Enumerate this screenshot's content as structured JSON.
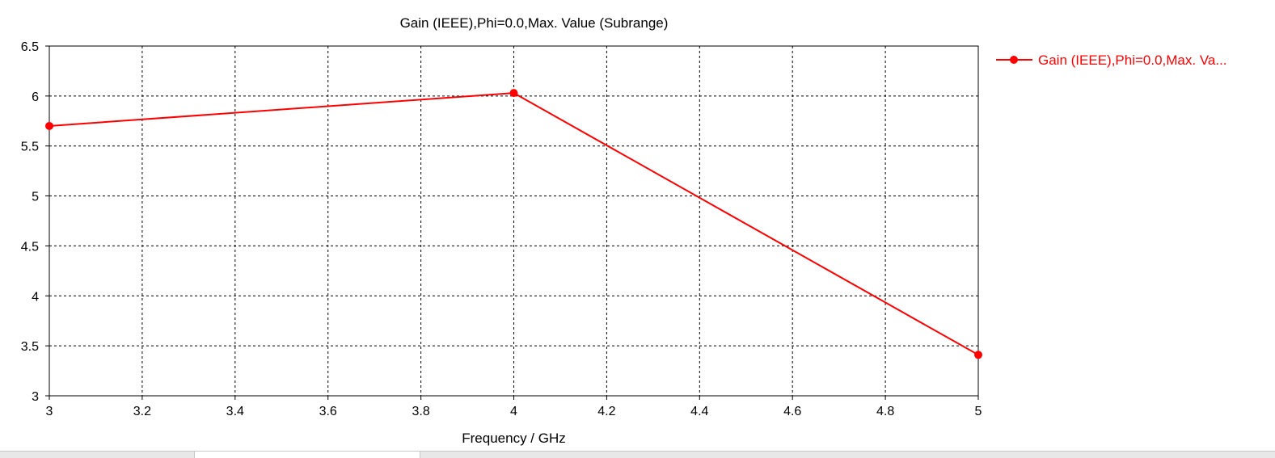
{
  "chart_data": {
    "type": "line",
    "title": "Gain (IEEE),Phi=0.0,Max. Value (Subrange)",
    "xlabel": "Frequency / GHz",
    "ylabel": "",
    "xlim": [
      3,
      5
    ],
    "ylim": [
      3,
      6.5
    ],
    "xticks": [
      "3",
      "3.2",
      "3.4",
      "3.6",
      "3.8",
      "4",
      "4.2",
      "4.4",
      "4.6",
      "4.8",
      "5"
    ],
    "yticks": [
      "3",
      "3.5",
      "4",
      "4.5",
      "5",
      "5.5",
      "6",
      "6.5"
    ],
    "grid": true,
    "legend_position": "right",
    "series": [
      {
        "name": "Gain (IEEE),Phi=0.0,Max. Va...",
        "color": "#ff0000",
        "x": [
          3,
          4,
          5
        ],
        "y": [
          5.7,
          6.03,
          3.41
        ]
      }
    ]
  }
}
